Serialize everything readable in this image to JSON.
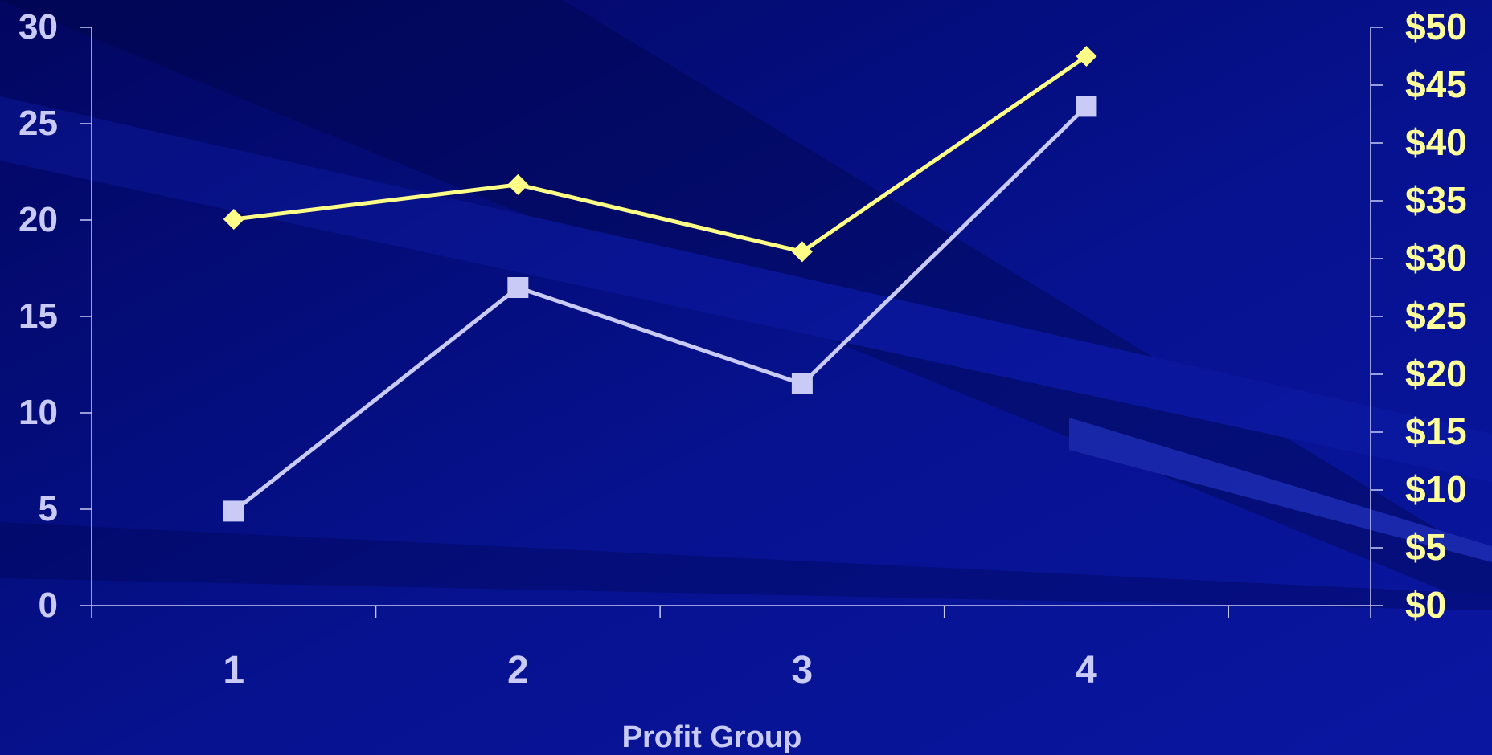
{
  "chart_data": {
    "type": "line",
    "categories": [
      "1",
      "2",
      "3",
      "4"
    ],
    "xlabel": "Profit Group",
    "y_left": {
      "ticks": [
        "0",
        "5",
        "10",
        "15",
        "20",
        "25",
        "30"
      ],
      "ylim": [
        0,
        30
      ]
    },
    "y_right": {
      "ticks": [
        "$0",
        "$5",
        "$10",
        "$15",
        "$20",
        "$25",
        "$30",
        "$35",
        "$40",
        "$45",
        "$50"
      ],
      "ylim": [
        0,
        50
      ]
    },
    "series": [
      {
        "axis": "left",
        "marker": "square",
        "color": "#c9cbf6",
        "values": [
          4.9,
          16.5,
          11.5,
          25.9
        ]
      },
      {
        "axis": "right",
        "marker": "diamond",
        "color": "#ffff88",
        "values": [
          33.4,
          36.4,
          30.6,
          47.5
        ]
      }
    ],
    "grid": false,
    "legend": "none"
  },
  "colors": {
    "background": "#050a8a",
    "axis": "#c9cbf6",
    "left_tick_text": "#c9cbf6",
    "right_tick_text": "#ffff99"
  }
}
